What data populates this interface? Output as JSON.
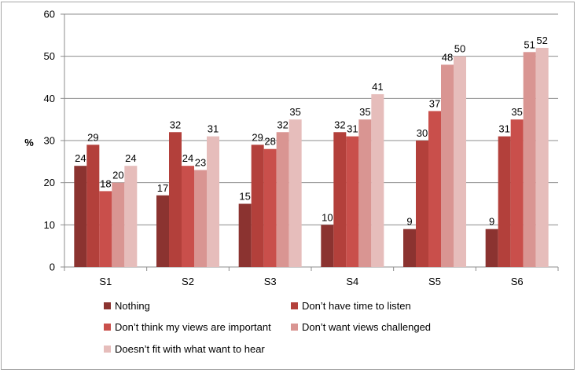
{
  "chart_data": {
    "type": "bar",
    "categories": [
      "S1",
      "S2",
      "S3",
      "S4",
      "S5",
      "S6"
    ],
    "series": [
      {
        "name": "Nothing",
        "color": "#8b3330",
        "values": [
          24,
          17,
          15,
          10,
          9,
          9
        ]
      },
      {
        "name": "Don’t have time to listen",
        "color": "#b3403b",
        "values": [
          29,
          32,
          29,
          32,
          30,
          31
        ]
      },
      {
        "name": "Don’t think my views are important",
        "color": "#c94f4b",
        "values": [
          18,
          24,
          28,
          31,
          37,
          35
        ]
      },
      {
        "name": "Don’t want views challenged",
        "color": "#d99592",
        "values": [
          20,
          23,
          32,
          35,
          48,
          51
        ]
      },
      {
        "name": "Doesn’t fit with what want to hear",
        "color": "#e6bdbb",
        "values": [
          24,
          31,
          35,
          41,
          50,
          52
        ]
      }
    ],
    "ylabel": "%",
    "ylim": [
      0,
      60
    ],
    "yticks": [
      0,
      10,
      20,
      30,
      40,
      50,
      60
    ],
    "grid": true,
    "legend_position": "bottom"
  }
}
